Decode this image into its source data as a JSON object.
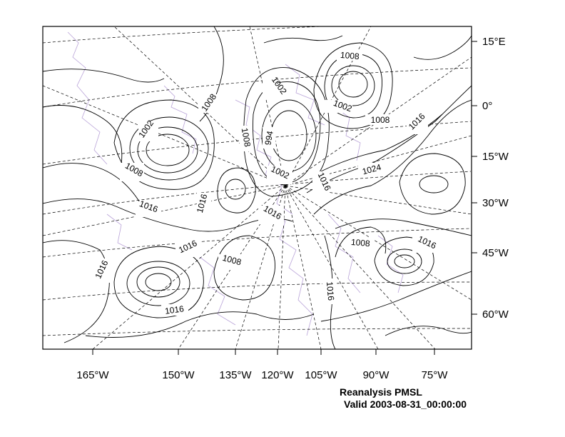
{
  "caption": {
    "title": "Reanalysis PMSL",
    "valid": "Valid 2003-08-31_00:00:00"
  },
  "axes": {
    "bottom_labels": [
      "165°W",
      "150°W",
      "135°W",
      "120°W",
      "105°W",
      "90°W",
      "75°W"
    ],
    "right_labels": [
      "15°E",
      "0°",
      "15°W",
      "30°W",
      "45°W",
      "60°W"
    ]
  },
  "contour_labels": [
    "1008",
    "1002",
    "1002",
    "1008",
    "1008",
    "1016",
    "1002",
    "1008",
    "994",
    "1008",
    "1016",
    "1002",
    "1024",
    "1016",
    "1016",
    "1016",
    "1008",
    "1016",
    "1016",
    "1008",
    "1016",
    "1016",
    "1016"
  ],
  "colors": {
    "contour": "#000000",
    "coastline": "#b9a3d8",
    "graticule": "#000000"
  }
}
